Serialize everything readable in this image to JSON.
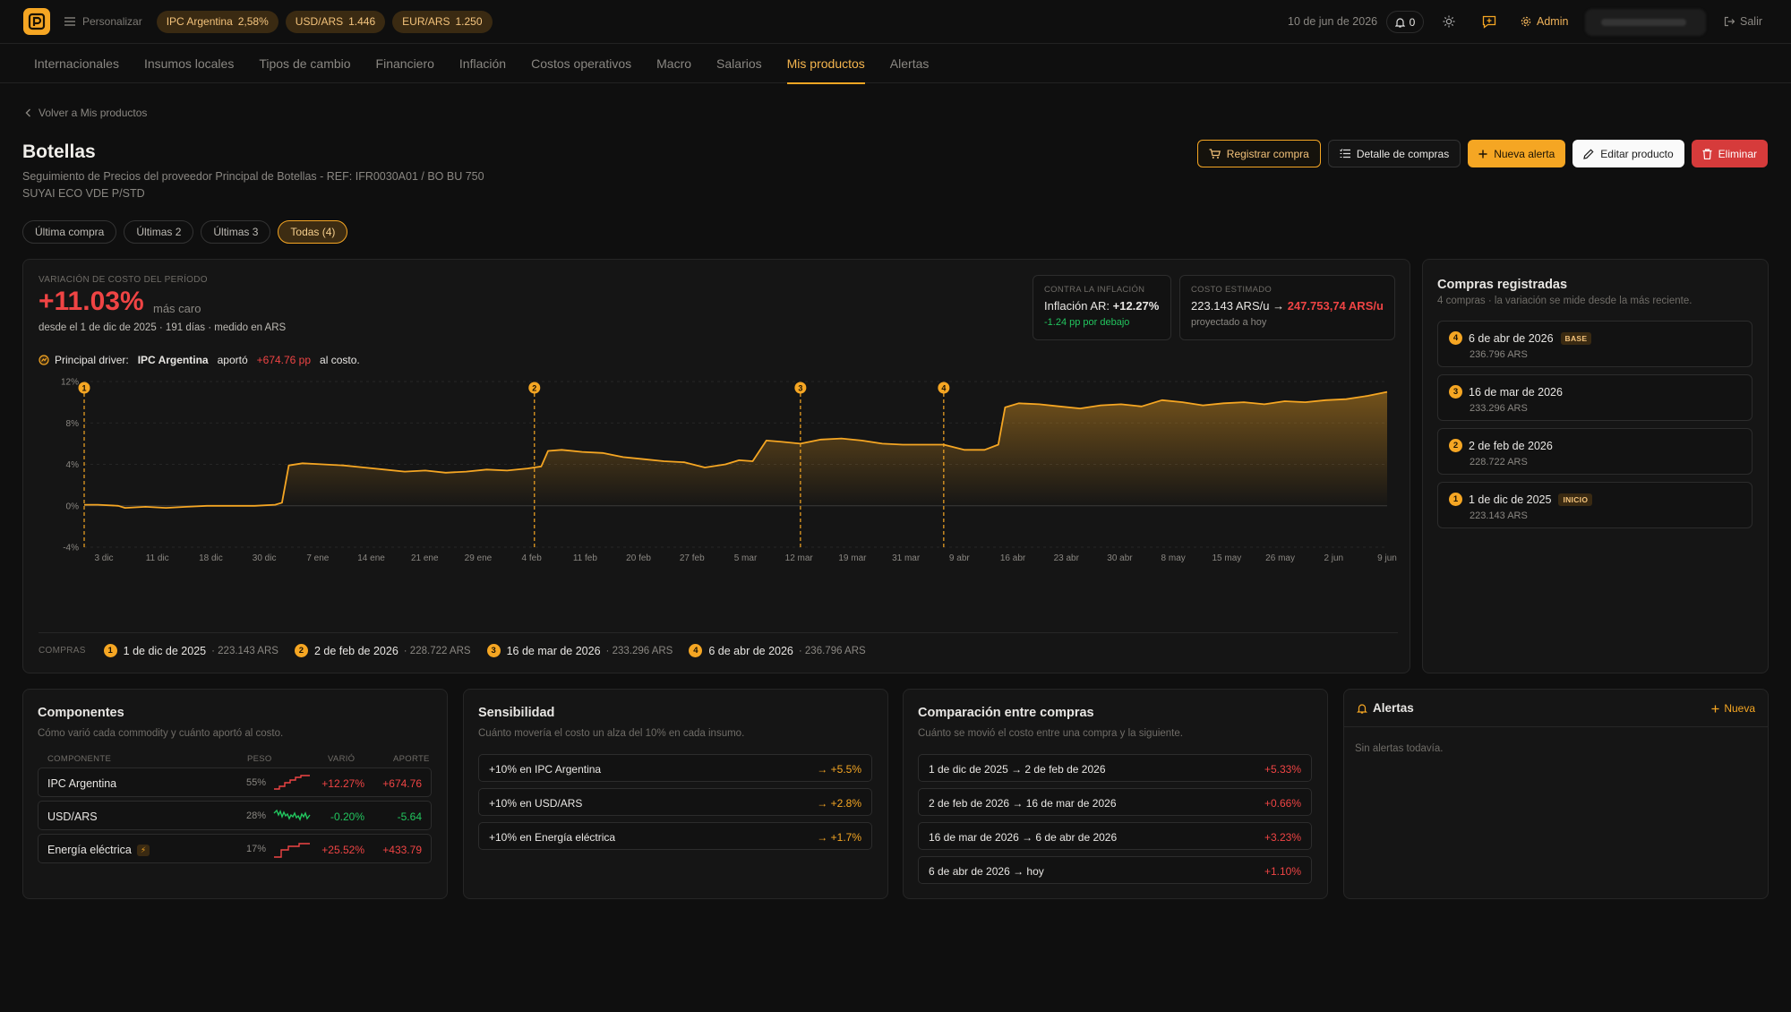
{
  "app": {
    "personalize_label": "Personalizar",
    "indicators": [
      {
        "name": "IPC Argentina",
        "value": "2,58%"
      },
      {
        "name": "USD/ARS",
        "value": "1.446"
      },
      {
        "name": "EUR/ARS",
        "value": "1.250"
      }
    ],
    "date": "10 de jun de 2026",
    "notifications": "0",
    "admin_label": "Admin",
    "logout_label": "Salir"
  },
  "nav": [
    "Internacionales",
    "Insumos locales",
    "Tipos de cambio",
    "Financiero",
    "Inflación",
    "Costos operativos",
    "Macro",
    "Salarios",
    "Mis productos",
    "Alertas"
  ],
  "nav_active": "Mis productos",
  "header": {
    "back_label": "Volver a Mis productos",
    "title": "Botellas",
    "subtitle_1": "Seguimiento de Precios del proveedor Principal de Botellas - REF: IFR0030A01 / BO BU 750",
    "subtitle_2": "SUYAI ECO VDE P/STD",
    "actions": {
      "register": "Registrar compra",
      "detail": "Detalle de compras",
      "new_alert": "Nueva alerta",
      "edit": "Editar producto",
      "delete": "Eliminar"
    },
    "filters": [
      "Última compra",
      "Últimas 2",
      "Últimas 3",
      "Todas (4)"
    ],
    "active_filter": "Todas (4)"
  },
  "summary": {
    "var_label": "VARIACIÓN DE COSTO DEL PERÍODO",
    "var_value": "+11.03%",
    "var_desc": "más caro",
    "since": "desde el 1 de dic de 2025 · 191 días · medido en ARS",
    "driver_label": "Principal driver:",
    "driver_name": "IPC Argentina",
    "driver_verb": "aportó",
    "driver_value": "+674.76 pp",
    "driver_tail": "al costo.",
    "inflation_label": "CONTRA LA INFLACIÓN",
    "inflation_text": "Inflación AR:",
    "inflation_value": "+12.27%",
    "inflation_sub": "-1.24 pp por debajo",
    "estimate_label": "COSTO ESTIMADO",
    "estimate_from": "223.143 ARS/u",
    "estimate_arrow": "→",
    "estimate_to": "247.753,74 ARS/u",
    "estimate_sub": "proyectado a hoy",
    "purchases_label": "COMPRAS"
  },
  "chart_data": {
    "type": "area",
    "ylim": [
      -4,
      12
    ],
    "y_ticks": [
      "12%",
      "8%",
      "4%",
      "0%",
      "-4%"
    ],
    "x_ticks": [
      "3 dic",
      "11 dic",
      "18 dic",
      "30 dic",
      "7 ene",
      "14 ene",
      "21 ene",
      "29 ene",
      "4 feb",
      "11 feb",
      "20 feb",
      "27 feb",
      "5 mar",
      "12 mar",
      "19 mar",
      "31 mar",
      "9 abr",
      "16 abr",
      "23 abr",
      "30 abr",
      "8 may",
      "15 may",
      "26 may",
      "2 jun",
      "9 jun"
    ],
    "x_start": "1 dic 2025",
    "x_end": "9 jun 2026",
    "series": [
      {
        "values": [
          [
            0,
            0.1
          ],
          [
            2,
            0.1
          ],
          [
            5,
            0.0
          ],
          [
            6,
            -0.2
          ],
          [
            9,
            -0.1
          ],
          [
            12,
            -0.2
          ],
          [
            15,
            -0.1
          ],
          [
            18,
            0.0
          ],
          [
            21,
            0.0
          ],
          [
            25,
            0.0
          ],
          [
            28,
            0.1
          ],
          [
            29,
            0.3
          ],
          [
            30,
            3.9
          ],
          [
            32,
            4.1
          ],
          [
            35,
            4.0
          ],
          [
            38,
            3.9
          ],
          [
            41,
            3.7
          ],
          [
            44,
            3.5
          ],
          [
            47,
            3.3
          ],
          [
            50,
            3.4
          ],
          [
            53,
            3.2
          ],
          [
            56,
            3.3
          ],
          [
            59,
            3.5
          ],
          [
            62,
            3.4
          ],
          [
            65,
            3.6
          ],
          [
            67,
            3.8
          ],
          [
            68,
            5.3
          ],
          [
            70,
            5.4
          ],
          [
            73,
            5.2
          ],
          [
            76,
            5.1
          ],
          [
            79,
            4.7
          ],
          [
            82,
            4.5
          ],
          [
            85,
            4.3
          ],
          [
            88,
            4.2
          ],
          [
            91,
            3.7
          ],
          [
            94,
            4.0
          ],
          [
            96,
            4.4
          ],
          [
            98,
            4.3
          ],
          [
            100,
            6.3
          ],
          [
            102,
            6.2
          ],
          [
            105,
            6.0
          ],
          [
            108,
            6.4
          ],
          [
            111,
            6.5
          ],
          [
            114,
            6.3
          ],
          [
            117,
            6.0
          ],
          [
            120,
            5.9
          ],
          [
            123,
            5.9
          ],
          [
            126,
            5.9
          ],
          [
            129,
            5.4
          ],
          [
            132,
            5.4
          ],
          [
            134,
            5.9
          ],
          [
            135,
            9.5
          ],
          [
            137,
            9.9
          ],
          [
            140,
            9.8
          ],
          [
            143,
            9.6
          ],
          [
            146,
            9.4
          ],
          [
            149,
            9.7
          ],
          [
            152,
            9.8
          ],
          [
            155,
            9.6
          ],
          [
            158,
            10.2
          ],
          [
            161,
            10.0
          ],
          [
            164,
            9.7
          ],
          [
            167,
            9.9
          ],
          [
            170,
            10.0
          ],
          [
            173,
            9.8
          ],
          [
            176,
            10.1
          ],
          [
            179,
            10.0
          ],
          [
            182,
            10.2
          ],
          [
            185,
            10.3
          ],
          [
            188,
            10.6
          ],
          [
            191,
            11.0
          ]
        ]
      }
    ],
    "purchases": [
      {
        "n": 1,
        "day": 0
      },
      {
        "n": 2,
        "day": 66
      },
      {
        "n": 3,
        "day": 105
      },
      {
        "n": 4,
        "day": 126
      }
    ],
    "total_days": 191
  },
  "purchases_row": [
    {
      "n": "1",
      "date": "1 de dic de 2025",
      "price": "· 223.143 ARS"
    },
    {
      "n": "2",
      "date": "2 de feb de 2026",
      "price": "· 228.722 ARS"
    },
    {
      "n": "3",
      "date": "16 de mar de 2026",
      "price": "· 233.296 ARS"
    },
    {
      "n": "4",
      "date": "6 de abr de 2026",
      "price": "· 236.796 ARS"
    }
  ],
  "registered": {
    "title": "Compras registradas",
    "subtitle": "4 compras · la variación se mide desde la más reciente.",
    "items": [
      {
        "n": "4",
        "date": "6 de abr de 2026",
        "price": "236.796 ARS",
        "tag": "BASE"
      },
      {
        "n": "3",
        "date": "16 de mar de 2026",
        "price": "233.296 ARS",
        "tag": ""
      },
      {
        "n": "2",
        "date": "2 de feb de 2026",
        "price": "228.722 ARS",
        "tag": ""
      },
      {
        "n": "1",
        "date": "1 de dic de 2025",
        "price": "223.143 ARS",
        "tag": "INICIO"
      }
    ]
  },
  "components": {
    "title": "Componentes",
    "subtitle": "Cómo varió cada commodity y cuánto aportó al costo.",
    "headers": {
      "name": "COMPONENTE",
      "weight": "PESO",
      "var": "VARIÓ",
      "contrib": "APORTE"
    },
    "rows": [
      {
        "name": "IPC Argentina",
        "weight": "55%",
        "var": "+12.27%",
        "contrib": "+674.76",
        "color": "#ef4444",
        "badge": ""
      },
      {
        "name": "USD/ARS",
        "weight": "28%",
        "var": "-0.20%",
        "contrib": "-5.64",
        "color": "#22c55e",
        "badge": ""
      },
      {
        "name": "Energía eléctrica",
        "weight": "17%",
        "var": "+25.52%",
        "contrib": "+433.79",
        "color": "#ef4444",
        "badge": "⚡"
      }
    ]
  },
  "sensitivity": {
    "title": "Sensibilidad",
    "subtitle": "Cuánto movería el costo un alza del 10% en cada insumo.",
    "rows": [
      {
        "label": "+10% en IPC Argentina",
        "value": "→ +5.5%"
      },
      {
        "label": "+10% en USD/ARS",
        "value": "→ +2.8%"
      },
      {
        "label": "+10% en Energía eléctrica",
        "value": "→ +1.7%"
      }
    ]
  },
  "comparison": {
    "title": "Comparación entre compras",
    "subtitle": "Cuánto se movió el costo entre una compra y la siguiente.",
    "rows": [
      {
        "label": "1 de dic de 2025 → 2 de feb de 2026",
        "value": "+5.33%"
      },
      {
        "label": "2 de feb de 2026 → 16 de mar de 2026",
        "value": "+0.66%"
      },
      {
        "label": "16 de mar de 2026 → 6 de abr de 2026",
        "value": "+3.23%"
      },
      {
        "label": "6 de abr de 2026 → hoy",
        "value": "+1.10%"
      }
    ]
  },
  "alerts": {
    "title": "Alertas",
    "new_label": "Nueva",
    "empty": "Sin alertas todavía."
  }
}
